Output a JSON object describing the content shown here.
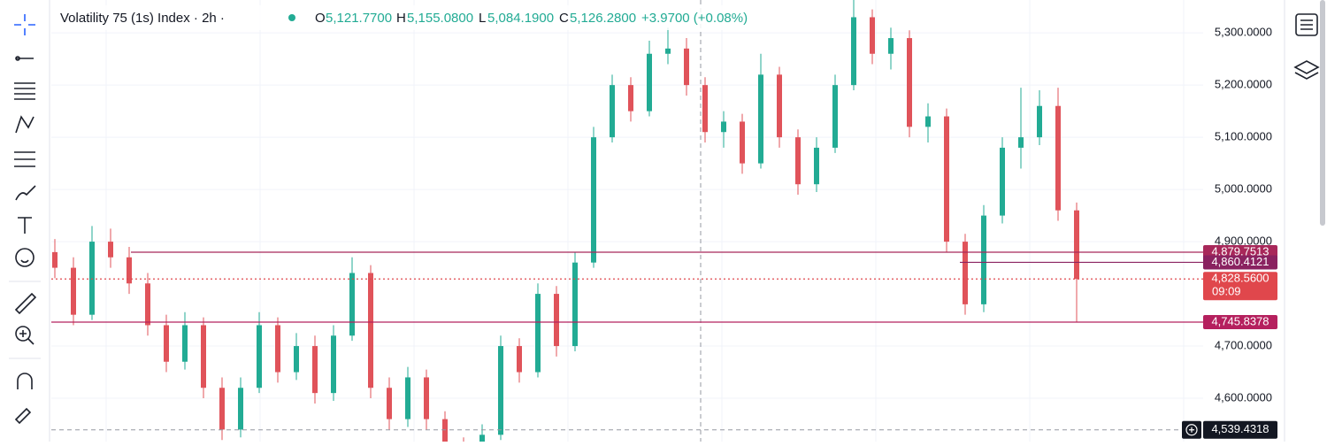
{
  "header": {
    "symbol": "Volatility 75 (1s) Index · 2h ·",
    "o_key": "O",
    "o": "5,121.7700",
    "h_key": "H",
    "h": "5,155.0800",
    "l_key": "L",
    "l": "5,084.1900",
    "c_key": "C",
    "c": "5,126.2800",
    "change": "+3.9700 (+0.08%)"
  },
  "chart_data": {
    "type": "candlestick",
    "up_color": "#22ab94",
    "down_color": "#e0535a",
    "grid": true,
    "ylim": [
      4517,
      5363
    ],
    "yticks": [
      {
        "value": 4600,
        "label": "4,600.0000"
      },
      {
        "value": 4700,
        "label": "4,700.0000"
      },
      {
        "value": 4900,
        "label": "4,900.0000"
      },
      {
        "value": 5000,
        "label": "5,000.0000"
      },
      {
        "value": 5100,
        "label": "5,100.0000"
      },
      {
        "value": 5200,
        "label": "5,200.0000"
      },
      {
        "value": 5300,
        "label": "5,300.0000"
      }
    ],
    "ohlc": [
      [
        4880,
        4905,
        4830,
        4850
      ],
      [
        4850,
        4870,
        4740,
        4760
      ],
      [
        4760,
        4930,
        4750,
        4900
      ],
      [
        4900,
        4925,
        4850,
        4870
      ],
      [
        4870,
        4890,
        4800,
        4820
      ],
      [
        4820,
        4840,
        4720,
        4740
      ],
      [
        4740,
        4760,
        4650,
        4670
      ],
      [
        4670,
        4765,
        4655,
        4740
      ],
      [
        4740,
        4755,
        4600,
        4620
      ],
      [
        4620,
        4640,
        4520,
        4540
      ],
      [
        4540,
        4640,
        4525,
        4620
      ],
      [
        4620,
        4765,
        4610,
        4740
      ],
      [
        4740,
        4755,
        4630,
        4650
      ],
      [
        4650,
        4725,
        4635,
        4700
      ],
      [
        4700,
        4720,
        4590,
        4610
      ],
      [
        4610,
        4740,
        4595,
        4720
      ],
      [
        4720,
        4870,
        4710,
        4840
      ],
      [
        4840,
        4855,
        4600,
        4620
      ],
      [
        4620,
        4640,
        4540,
        4560
      ],
      [
        4560,
        4660,
        4545,
        4640
      ],
      [
        4640,
        4655,
        4540,
        4560
      ],
      [
        4560,
        4575,
        4495,
        4510
      ],
      [
        4510,
        4525,
        4485,
        4500
      ],
      [
        4500,
        4550,
        4490,
        4530
      ],
      [
        4530,
        4720,
        4520,
        4700
      ],
      [
        4700,
        4715,
        4630,
        4650
      ],
      [
        4650,
        4820,
        4640,
        4800
      ],
      [
        4800,
        4815,
        4680,
        4700
      ],
      [
        4700,
        4880,
        4690,
        4860
      ],
      [
        4860,
        5120,
        4850,
        5100
      ],
      [
        5100,
        5220,
        5090,
        5200
      ],
      [
        5200,
        5215,
        5130,
        5150
      ],
      [
        5150,
        5285,
        5140,
        5260
      ],
      [
        5260,
        5310,
        5240,
        5270
      ],
      [
        5270,
        5290,
        5180,
        5200
      ],
      [
        5200,
        5215,
        5090,
        5110
      ],
      [
        5110,
        5150,
        5080,
        5130
      ],
      [
        5130,
        5145,
        5030,
        5050
      ],
      [
        5050,
        5260,
        5040,
        5220
      ],
      [
        5220,
        5235,
        5080,
        5100
      ],
      [
        5100,
        5115,
        4990,
        5010
      ],
      [
        5010,
        5100,
        4995,
        5080
      ],
      [
        5080,
        5220,
        5070,
        5200
      ],
      [
        5200,
        5365,
        5190,
        5330
      ],
      [
        5330,
        5345,
        5240,
        5260
      ],
      [
        5260,
        5310,
        5230,
        5290
      ],
      [
        5290,
        5305,
        5100,
        5120
      ],
      [
        5120,
        5165,
        5090,
        5140
      ],
      [
        5140,
        5155,
        4880,
        4900
      ],
      [
        4900,
        4915,
        4760,
        4780
      ],
      [
        4780,
        4970,
        4765,
        4950
      ],
      [
        4950,
        5100,
        4935,
        5080
      ],
      [
        5080,
        5195,
        5040,
        5100
      ],
      [
        5100,
        5190,
        5085,
        5160
      ],
      [
        5160,
        5195,
        4940,
        4960
      ],
      [
        4960,
        4975,
        4745.8378,
        4828.56
      ]
    ],
    "levels": [
      {
        "value": 4879.7513,
        "label": "4,879.7513",
        "color": "#a8285a"
      },
      {
        "value": 4860.4121,
        "label": "4,860.4121",
        "color": "#8a2260"
      },
      {
        "value": 4828.56,
        "label": "4,828.5600",
        "countdown": "09:09",
        "color": "#e0474c"
      },
      {
        "value": 4745.8378,
        "label": "4,745.8378",
        "color": "#b5205e"
      }
    ],
    "crosshair": {
      "value": 4539.4318,
      "label": "4,539.4318"
    }
  }
}
